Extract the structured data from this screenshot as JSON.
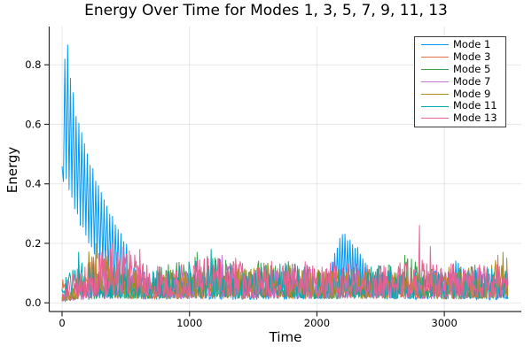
{
  "figure": {
    "kind": "plot-image",
    "background": "#ffffff",
    "axis_color": "#2b2b2b",
    "grid_color": "rgba(0,0,0,0.09)"
  },
  "chart_data": {
    "type": "line",
    "title": "Energy Over Time for Modes 1, 3, 5, 7, 9, 11, 13",
    "xlabel": "Time",
    "ylabel": "Energy",
    "x_data_range": [
      0,
      3500
    ],
    "xlim": [
      -100,
      3600
    ],
    "ylim": [
      -0.03,
      0.93
    ],
    "xticks": [
      0,
      1000,
      2000,
      3000
    ],
    "yticks": [
      0.0,
      0.2,
      0.4,
      0.6,
      0.8
    ],
    "ytick_labels": [
      "0.0",
      "0.2",
      "0.4",
      "0.6",
      "0.8"
    ],
    "grid": true,
    "legend_position": "top-right",
    "legend_entries": [
      "Mode 1",
      "Mode 3",
      "Mode 5",
      "Mode 7",
      "Mode 9",
      "Mode 11",
      "Mode 13"
    ],
    "seed": 20240613,
    "series": [
      {
        "name": "Mode 1",
        "color": "#009AFA",
        "description": "oscillatory decay from 0.9 to noise floor by t=520, resonant bumps near t=2200 (0.23) and t=3090 (0.145)",
        "decay": {
          "t_end": 520,
          "period": 22,
          "upper": [
            [
              0,
              0.45
            ],
            [
              25,
              0.9
            ],
            [
              55,
              0.83
            ],
            [
              90,
              0.68
            ],
            [
              120,
              0.6
            ],
            [
              150,
              0.56
            ],
            [
              200,
              0.5
            ],
            [
              250,
              0.44
            ],
            [
              300,
              0.38
            ],
            [
              350,
              0.33
            ],
            [
              400,
              0.28
            ],
            [
              450,
              0.24
            ],
            [
              500,
              0.2
            ],
            [
              520,
              0.18
            ]
          ],
          "lower": [
            [
              0,
              0.4
            ],
            [
              25,
              0.42
            ],
            [
              90,
              0.33
            ],
            [
              150,
              0.26
            ],
            [
              250,
              0.17
            ],
            [
              350,
              0.1
            ],
            [
              450,
              0.05
            ],
            [
              520,
              0.04
            ]
          ]
        },
        "oscillations": [
          {
            "t0": 2120,
            "t1": 2420,
            "period": 20,
            "upper": [
              [
                2120,
                0.14
              ],
              [
                2190,
                0.23
              ],
              [
                2250,
                0.215
              ],
              [
                2320,
                0.18
              ],
              [
                2420,
                0.1
              ]
            ],
            "lower": [
              [
                2120,
                0.05
              ],
              [
                2250,
                0.06
              ],
              [
                2420,
                0.04
              ]
            ]
          },
          {
            "t0": 3030,
            "t1": 3170,
            "period": 20,
            "upper": [
              [
                3030,
                0.1
              ],
              [
                3090,
                0.145
              ],
              [
                3170,
                0.1
              ]
            ],
            "lower": [
              [
                3030,
                0.035
              ],
              [
                3170,
                0.03
              ]
            ]
          }
        ],
        "noise_env": [
          [
            520,
            0.13
          ],
          [
            700,
            0.1
          ],
          [
            1000,
            0.1
          ],
          [
            1400,
            0.09
          ],
          [
            1800,
            0.1
          ],
          [
            2050,
            0.12
          ],
          [
            2430,
            0.12
          ],
          [
            2550,
            0.09
          ],
          [
            2700,
            0.09
          ],
          [
            2950,
            0.11
          ],
          [
            3180,
            0.09
          ],
          [
            3300,
            0.08
          ],
          [
            3500,
            0.08
          ]
        ],
        "spikes": []
      },
      {
        "name": "Mode 3",
        "color": "#E36F47",
        "noise_env": [
          [
            0,
            0.085
          ],
          [
            80,
            0.09
          ],
          [
            150,
            0.13
          ],
          [
            250,
            0.17
          ],
          [
            350,
            0.15
          ],
          [
            500,
            0.12
          ],
          [
            700,
            0.1
          ],
          [
            1000,
            0.11
          ],
          [
            1300,
            0.1
          ],
          [
            1600,
            0.12
          ],
          [
            1900,
            0.1
          ],
          [
            2200,
            0.12
          ],
          [
            2400,
            0.13
          ],
          [
            2650,
            0.12
          ],
          [
            2900,
            0.11
          ],
          [
            3100,
            0.1
          ],
          [
            3300,
            0.12
          ],
          [
            3420,
            0.16
          ],
          [
            3500,
            0.12
          ]
        ],
        "spikes": [
          [
            3420,
            0.16
          ]
        ]
      },
      {
        "name": "Mode 5",
        "color": "#3DA44D",
        "noise_env": [
          [
            0,
            0.02
          ],
          [
            150,
            0.08
          ],
          [
            300,
            0.12
          ],
          [
            600,
            0.11
          ],
          [
            900,
            0.14
          ],
          [
            1100,
            0.16
          ],
          [
            1250,
            0.15
          ],
          [
            1400,
            0.12
          ],
          [
            1670,
            0.16
          ],
          [
            1900,
            0.12
          ],
          [
            2100,
            0.11
          ],
          [
            2400,
            0.12
          ],
          [
            2680,
            0.16
          ],
          [
            2810,
            0.15
          ],
          [
            3000,
            0.1
          ],
          [
            3200,
            0.13
          ],
          [
            3500,
            0.11
          ]
        ],
        "spikes": [
          [
            1060,
            0.17
          ],
          [
            2690,
            0.16
          ]
        ]
      },
      {
        "name": "Mode 7",
        "color": "#C371D2",
        "noise_env": [
          [
            0,
            0.03
          ],
          [
            150,
            0.09
          ],
          [
            300,
            0.12
          ],
          [
            500,
            0.11
          ],
          [
            800,
            0.1
          ],
          [
            1100,
            0.12
          ],
          [
            1250,
            0.16
          ],
          [
            1500,
            0.11
          ],
          [
            1800,
            0.12
          ],
          [
            2100,
            0.11
          ],
          [
            2400,
            0.1
          ],
          [
            2700,
            0.12
          ],
          [
            3000,
            0.1
          ],
          [
            3250,
            0.12
          ],
          [
            3500,
            0.1
          ]
        ],
        "spikes": [
          [
            1255,
            0.16
          ]
        ]
      },
      {
        "name": "Mode 9",
        "color": "#AC8E18",
        "noise_env": [
          [
            0,
            0.04
          ],
          [
            150,
            0.13
          ],
          [
            250,
            0.2
          ],
          [
            320,
            0.18
          ],
          [
            420,
            0.15
          ],
          [
            600,
            0.12
          ],
          [
            900,
            0.11
          ],
          [
            1200,
            0.12
          ],
          [
            1500,
            0.14
          ],
          [
            1800,
            0.13
          ],
          [
            2100,
            0.12
          ],
          [
            2400,
            0.11
          ],
          [
            2700,
            0.1
          ],
          [
            3000,
            0.12
          ],
          [
            3290,
            0.12
          ],
          [
            3450,
            0.17
          ],
          [
            3500,
            0.15
          ]
        ],
        "spikes": [
          [
            265,
            0.2
          ],
          [
            3460,
            0.17
          ],
          [
            3490,
            0.15
          ]
        ]
      },
      {
        "name": "Mode 11",
        "color": "#00AAAE",
        "noise_env": [
          [
            0,
            0.06
          ],
          [
            120,
            0.17
          ],
          [
            250,
            0.13
          ],
          [
            450,
            0.13
          ],
          [
            700,
            0.12
          ],
          [
            950,
            0.13
          ],
          [
            1150,
            0.17
          ],
          [
            1300,
            0.15
          ],
          [
            1550,
            0.12
          ],
          [
            1800,
            0.14
          ],
          [
            2100,
            0.11
          ],
          [
            2450,
            0.13
          ],
          [
            2750,
            0.12
          ],
          [
            3050,
            0.11
          ],
          [
            3420,
            0.13
          ],
          [
            3500,
            0.12
          ]
        ],
        "spikes": [
          [
            130,
            0.17
          ],
          [
            1170,
            0.18
          ]
        ]
      },
      {
        "name": "Mode 13",
        "color": "#ED5E93",
        "noise_env": [
          [
            0,
            0.05
          ],
          [
            100,
            0.11
          ],
          [
            250,
            0.17
          ],
          [
            400,
            0.2
          ],
          [
            560,
            0.18
          ],
          [
            700,
            0.14
          ],
          [
            900,
            0.13
          ],
          [
            1100,
            0.15
          ],
          [
            1300,
            0.17
          ],
          [
            1500,
            0.13
          ],
          [
            1700,
            0.15
          ],
          [
            1900,
            0.14
          ],
          [
            2100,
            0.14
          ],
          [
            2300,
            0.15
          ],
          [
            2500,
            0.13
          ],
          [
            2700,
            0.14
          ],
          [
            2900,
            0.16
          ],
          [
            3100,
            0.13
          ],
          [
            3300,
            0.14
          ],
          [
            3500,
            0.13
          ]
        ],
        "spikes": [
          [
            2805,
            0.26
          ],
          [
            2890,
            0.19
          ],
          [
            610,
            0.18
          ],
          [
            390,
            0.2
          ]
        ]
      }
    ]
  }
}
